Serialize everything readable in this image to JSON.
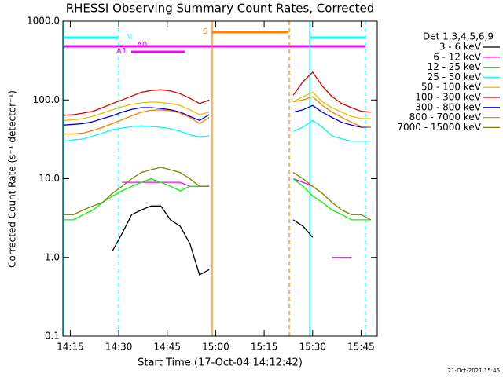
{
  "chart_data": {
    "type": "line",
    "title": "RHESSI Observing Summary Count Rates, Corrected",
    "xlabel": "Start Time (17-Oct-04 14:12:42)",
    "ylabel": "Corrected Count Rate (s⁻¹ detector⁻¹)",
    "legend_title": "Det 1,3,4,5,6,9",
    "footer": "21-Oct-2021 15:46",
    "annotations": [
      "N",
      "A0",
      "A1",
      "S"
    ],
    "log_y": true,
    "xlim": [
      "14:12:42",
      "15:50"
    ],
    "xticks": [
      "14:15",
      "14:30",
      "14:45",
      "15:00",
      "15:15",
      "15:30",
      "15:45"
    ],
    "ylim": [
      0.1,
      1000
    ],
    "yticks": [
      0.1,
      {
        "value": 1,
        "label": "1.0"
      },
      {
        "value": 10,
        "label": "10.0"
      },
      {
        "value": 100,
        "label": "100.0"
      },
      {
        "value": 1000,
        "label": "1000.0"
      }
    ],
    "x": [
      "14:13",
      "14:16",
      "14:19",
      "14:22",
      "14:25",
      "14:28",
      "14:31",
      "14:34",
      "14:37",
      "14:40",
      "14:43",
      "14:46",
      "14:49",
      "14:52",
      "14:55",
      "14:58",
      "15:10",
      "15:24",
      "15:27",
      "15:30",
      "15:33",
      "15:36",
      "15:39",
      "15:42",
      "15:45",
      "15:48"
    ],
    "series": [
      {
        "name": "3 - 6 keV",
        "color": "#000000",
        "values": [
          null,
          null,
          null,
          null,
          null,
          1.2,
          2,
          3.5,
          4,
          4.5,
          4.5,
          3,
          2.5,
          1.5,
          0.6,
          0.7,
          null,
          3,
          2.5,
          1.8,
          null,
          null,
          null,
          null,
          null,
          null
        ]
      },
      {
        "name": "6 - 12 keV",
        "color": "#ff00ff",
        "values": [
          null,
          null,
          null,
          null,
          null,
          null,
          9,
          9,
          9,
          9,
          9,
          9,
          9,
          8,
          8,
          8,
          null,
          10,
          9,
          8,
          null,
          1,
          1,
          1,
          null,
          null
        ]
      },
      {
        "name": "12 - 25 keV",
        "color": "#00ff00",
        "values": [
          3,
          3,
          3.5,
          4,
          5,
          6,
          7,
          8,
          9,
          10,
          9,
          8,
          7,
          8,
          8,
          8,
          null,
          10,
          8,
          6,
          5,
          4,
          3.5,
          3,
          3,
          3
        ]
      },
      {
        "name": "25 - 50 keV",
        "color": "#00ffff",
        "values": [
          30,
          31,
          32,
          35,
          38,
          42,
          44,
          46,
          47,
          46,
          45,
          43,
          40,
          36,
          34,
          35,
          null,
          40,
          45,
          55,
          45,
          35,
          32,
          30,
          30,
          30
        ]
      },
      {
        "name": "50 - 100 keV",
        "color": "#e8c000",
        "values": [
          55,
          56,
          58,
          62,
          68,
          75,
          82,
          88,
          92,
          94,
          93,
          90,
          85,
          75,
          65,
          70,
          null,
          95,
          110,
          125,
          95,
          80,
          70,
          62,
          58,
          58
        ]
      },
      {
        "name": "100 - 300 keV",
        "color": "#e00000",
        "values": [
          64,
          65,
          68,
          72,
          80,
          90,
          100,
          112,
          125,
          132,
          135,
          130,
          120,
          105,
          90,
          100,
          null,
          115,
          170,
          225,
          150,
          110,
          90,
          80,
          72,
          70
        ]
      },
      {
        "name": "300 - 800 keV",
        "color": "#0000e0",
        "values": [
          48,
          49,
          50,
          53,
          58,
          63,
          70,
          76,
          80,
          80,
          78,
          75,
          70,
          62,
          55,
          65,
          null,
          70,
          75,
          85,
          70,
          60,
          52,
          48,
          45,
          45
        ]
      },
      {
        "name": "800 - 7000 keV",
        "color": "#ff8000",
        "values": [
          37,
          37,
          38,
          41,
          45,
          50,
          56,
          63,
          70,
          74,
          75,
          73,
          68,
          60,
          50,
          60,
          null,
          95,
          100,
          110,
          85,
          70,
          60,
          52,
          46,
          45
        ]
      },
      {
        "name": "7000 - 15000 keV",
        "color": "#808000",
        "values": [
          3.5,
          3.5,
          4,
          4.5,
          5,
          6.5,
          8,
          10,
          12,
          13,
          14,
          13,
          12,
          10,
          8,
          8,
          null,
          12,
          10,
          8,
          6.5,
          5,
          4,
          3.5,
          3.5,
          3
        ]
      }
    ]
  }
}
